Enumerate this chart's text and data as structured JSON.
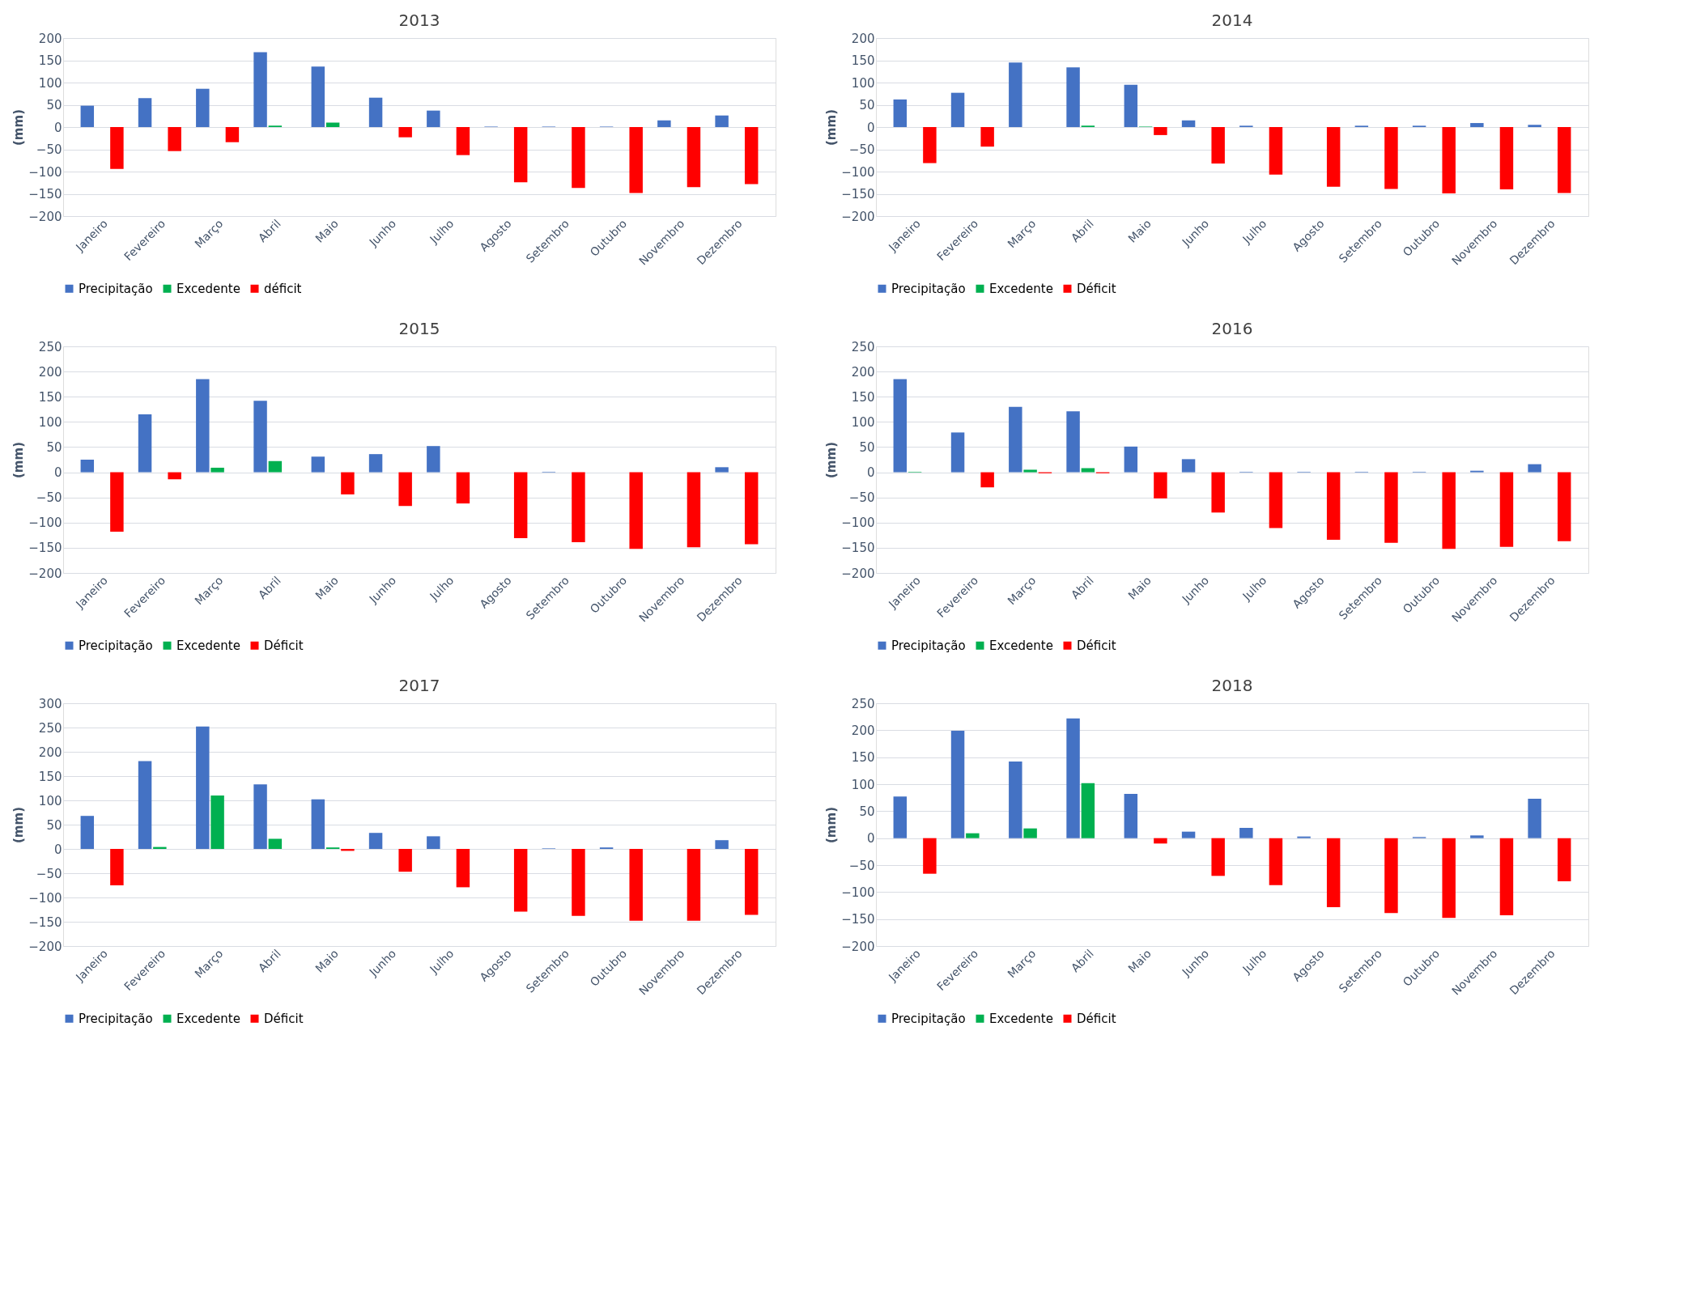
{
  "chart_data": [
    {
      "type": "bar",
      "title": "2013",
      "ylabel": "(mm)",
      "categories": [
        "Janeiro",
        "Fevereiro",
        "Março",
        "Abril",
        "Maio",
        "Junho",
        "Julho",
        "Agosto",
        "Setembro",
        "Outubro",
        "Novembro",
        "Dezembro"
      ],
      "ylim": [
        -200,
        200
      ],
      "yticks": [
        -200,
        -150,
        -100,
        -50,
        0,
        50,
        100,
        150,
        200
      ],
      "grid": "y",
      "legend": "bottom",
      "series": [
        {
          "name": "Precipitação",
          "color": "#4472c4",
          "values": [
            48,
            65,
            86,
            168,
            136,
            66,
            37,
            1,
            1,
            1,
            15,
            26
          ]
        },
        {
          "name": "Excedente",
          "color": "#00b050",
          "values": [
            0,
            0,
            0,
            3,
            10,
            0,
            0,
            0,
            0,
            0,
            0,
            0
          ]
        },
        {
          "name": "déficit",
          "color": "#ff0000",
          "values": [
            -94,
            -54,
            -34,
            0,
            0,
            -23,
            -63,
            -124,
            -137,
            -148,
            -135,
            -128
          ]
        }
      ]
    },
    {
      "type": "bar",
      "title": "2014",
      "ylabel": "(mm)",
      "categories": [
        "Janeiro",
        "Fevereiro",
        "Março",
        "Abril",
        "Maio",
        "Junho",
        "Julho",
        "Agosto",
        "Setembro",
        "Outubro",
        "Novembro",
        "Dezembro"
      ],
      "ylim": [
        -200,
        200
      ],
      "yticks": [
        -200,
        -150,
        -100,
        -50,
        0,
        50,
        100,
        150,
        200
      ],
      "grid": "y",
      "legend": "bottom",
      "series": [
        {
          "name": "Precipitação",
          "color": "#4472c4",
          "values": [
            62,
            77,
            145,
            134,
            95,
            15,
            3,
            0,
            3,
            3,
            9,
            5
          ]
        },
        {
          "name": "Excedente",
          "color": "#00b050",
          "values": [
            0,
            0,
            0,
            3,
            1,
            0,
            0,
            0,
            0,
            0,
            0,
            0
          ]
        },
        {
          "name": "Déficit",
          "color": "#ff0000",
          "values": [
            -81,
            -44,
            0,
            0,
            -18,
            -82,
            -107,
            -134,
            -139,
            -149,
            -140,
            -148
          ]
        }
      ]
    },
    {
      "type": "bar",
      "title": "2015",
      "ylabel": "(mm)",
      "categories": [
        "Janeiro",
        "Fevereiro",
        "Março",
        "Abril",
        "Maio",
        "Junho",
        "Julho",
        "Agosto",
        "Setembro",
        "Outubro",
        "Novembro",
        "Dezembro"
      ],
      "ylim": [
        -200,
        250
      ],
      "yticks": [
        -200,
        -150,
        -100,
        -50,
        0,
        50,
        100,
        150,
        200,
        250
      ],
      "grid": "y",
      "legend": "bottom",
      "series": [
        {
          "name": "Precipitação",
          "color": "#4472c4",
          "values": [
            25,
            115,
            185,
            142,
            31,
            36,
            52,
            0,
            1,
            0,
            0,
            10
          ]
        },
        {
          "name": "Excedente",
          "color": "#00b050",
          "values": [
            0,
            0,
            9,
            22,
            0,
            0,
            0,
            0,
            0,
            0,
            0,
            0
          ]
        },
        {
          "name": "Déficit",
          "color": "#ff0000",
          "values": [
            -118,
            -14,
            0,
            0,
            -44,
            -67,
            -62,
            -131,
            -139,
            -152,
            -149,
            -143
          ]
        }
      ]
    },
    {
      "type": "bar",
      "title": "2016",
      "ylabel": "(mm)",
      "categories": [
        "Janeiro",
        "Fevereiro",
        "Março",
        "Abril",
        "Maio",
        "Junho",
        "Julho",
        "Agosto",
        "Setembro",
        "Outubro",
        "Novembro",
        "Dezembro"
      ],
      "ylim": [
        -200,
        250
      ],
      "yticks": [
        -200,
        -150,
        -100,
        -50,
        0,
        50,
        100,
        150,
        200,
        250
      ],
      "grid": "y",
      "legend": "bottom",
      "series": [
        {
          "name": "Precipitação",
          "color": "#4472c4",
          "values": [
            185,
            79,
            130,
            121,
            51,
            26,
            1,
            1,
            1,
            1,
            3,
            16
          ]
        },
        {
          "name": "Excedente",
          "color": "#00b050",
          "values": [
            1,
            0,
            5,
            8,
            0,
            0,
            0,
            0,
            0,
            0,
            0,
            0
          ]
        },
        {
          "name": "Déficit",
          "color": "#ff0000",
          "values": [
            0,
            -30,
            -2,
            -2,
            -52,
            -80,
            -111,
            -134,
            -140,
            -152,
            -148,
            -137
          ]
        }
      ]
    },
    {
      "type": "bar",
      "title": "2017",
      "ylabel": "(mm)",
      "categories": [
        "Janeiro",
        "Fevereiro",
        "Março",
        "Abril",
        "Maio",
        "Junho",
        "Julho",
        "Agosto",
        "Setembro",
        "Outubro",
        "Novembro",
        "Dezembro"
      ],
      "ylim": [
        -200,
        300
      ],
      "yticks": [
        -200,
        -150,
        -100,
        -50,
        0,
        50,
        100,
        150,
        200,
        250,
        300
      ],
      "grid": "y",
      "legend": "bottom",
      "series": [
        {
          "name": "Precipitação",
          "color": "#4472c4",
          "values": [
            68,
            181,
            252,
            133,
            102,
            33,
            26,
            0,
            1,
            3,
            0,
            18
          ]
        },
        {
          "name": "Excedente",
          "color": "#00b050",
          "values": [
            0,
            4,
            110,
            21,
            3,
            0,
            0,
            0,
            0,
            0,
            0,
            0
          ]
        },
        {
          "name": "Déficit",
          "color": "#ff0000",
          "values": [
            -75,
            0,
            0,
            0,
            -4,
            -47,
            -79,
            -129,
            -138,
            -148,
            -148,
            -136
          ]
        }
      ]
    },
    {
      "type": "bar",
      "title": "2018",
      "ylabel": "(mm)",
      "categories": [
        "Janeiro",
        "Fevereiro",
        "Março",
        "Abril",
        "Maio",
        "Junho",
        "Julho",
        "Agosto",
        "Setembro",
        "Outubro",
        "Novembro",
        "Dezembro"
      ],
      "ylim": [
        -200,
        250
      ],
      "yticks": [
        -200,
        -150,
        -100,
        -50,
        0,
        50,
        100,
        150,
        200,
        250
      ],
      "grid": "y",
      "legend": "bottom",
      "series": [
        {
          "name": "Precipitação",
          "color": "#4472c4",
          "values": [
            77,
            199,
            142,
            222,
            82,
            12,
            19,
            3,
            0,
            2,
            5,
            73
          ]
        },
        {
          "name": "Excedente",
          "color": "#00b050",
          "values": [
            0,
            9,
            18,
            102,
            0,
            0,
            0,
            0,
            0,
            0,
            0,
            0
          ]
        },
        {
          "name": "Déficit",
          "color": "#ff0000",
          "values": [
            -66,
            0,
            0,
            0,
            -10,
            -70,
            -87,
            -128,
            -139,
            -148,
            -143,
            -80
          ]
        }
      ]
    }
  ]
}
